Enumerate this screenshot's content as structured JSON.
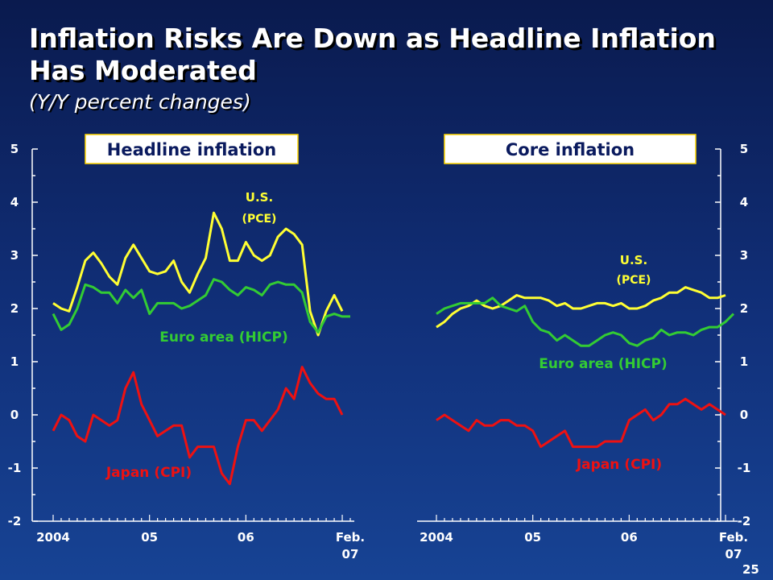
{
  "slide": {
    "title": "Inflation Risks Are Down as Headline Inflation Has Moderated",
    "subtitle": "(Y/Y percent changes)",
    "page_number": "25"
  },
  "colors": {
    "us": "#ffff33",
    "euro": "#33cc33",
    "japan": "#ee1111",
    "axis": "#ffffff",
    "panel_label_border": "#ffd700"
  },
  "chart_data": [
    {
      "type": "line",
      "title": "Headline inflation",
      "ylim": [
        -2,
        5
      ],
      "yticks": [
        "5",
        "4",
        "3",
        "2",
        "1",
        "0",
        "-1",
        "-2"
      ],
      "xlim": [
        2004.0,
        2007.125
      ],
      "xticks": [
        {
          "x": 2004,
          "label": "2004"
        },
        {
          "x": 2005,
          "label": "05"
        },
        {
          "x": 2006,
          "label": "06"
        },
        {
          "x": 2007.083,
          "label": "Feb.",
          "label2": "07"
        }
      ],
      "series": [
        {
          "name": "U.S.",
          "sub": "(PCE)",
          "key": "us",
          "x_start": 2004.0,
          "step": 0.08333,
          "values": [
            2.1,
            2.0,
            1.95,
            2.4,
            2.9,
            3.05,
            2.85,
            2.6,
            2.45,
            2.95,
            3.2,
            2.95,
            2.7,
            2.65,
            2.7,
            2.9,
            2.5,
            2.3,
            2.65,
            2.95,
            3.8,
            3.5,
            2.9,
            2.9,
            3.25,
            3.0,
            2.9,
            3.0,
            3.35,
            3.5,
            3.4,
            3.2,
            1.95,
            1.5,
            1.95,
            2.25,
            1.95
          ]
        },
        {
          "name": "Euro area (HICP)",
          "key": "euro",
          "x_start": 2004.0,
          "step": 0.08333,
          "values": [
            1.9,
            1.6,
            1.7,
            2.0,
            2.45,
            2.4,
            2.3,
            2.3,
            2.1,
            2.35,
            2.2,
            2.35,
            1.9,
            2.1,
            2.1,
            2.1,
            2.0,
            2.05,
            2.15,
            2.25,
            2.55,
            2.5,
            2.35,
            2.25,
            2.4,
            2.35,
            2.25,
            2.45,
            2.5,
            2.45,
            2.45,
            2.3,
            1.75,
            1.55,
            1.85,
            1.9,
            1.85,
            1.85
          ]
        },
        {
          "name": "Japan (CPI)",
          "key": "japan",
          "x_start": 2004.0,
          "step": 0.08333,
          "values": [
            -0.3,
            0.0,
            -0.1,
            -0.4,
            -0.5,
            0.0,
            -0.1,
            -0.2,
            -0.1,
            0.5,
            0.8,
            0.2,
            -0.1,
            -0.4,
            -0.3,
            -0.2,
            -0.2,
            -0.8,
            -0.6,
            -0.6,
            -0.6,
            -1.1,
            -1.3,
            -0.6,
            -0.1,
            -0.1,
            -0.3,
            -0.1,
            0.1,
            0.5,
            0.3,
            0.9,
            0.6,
            0.4,
            0.3,
            0.3,
            0.0
          ]
        }
      ]
    },
    {
      "type": "line",
      "title": "Core inflation",
      "ylim": [
        -2,
        5
      ],
      "yticks": [
        "5",
        "4",
        "3",
        "2",
        "1",
        "0",
        "-1",
        "-2"
      ],
      "xlim": [
        2004.0,
        2007.125
      ],
      "xticks": [
        {
          "x": 2004,
          "label": "2004"
        },
        {
          "x": 2005,
          "label": "05"
        },
        {
          "x": 2006,
          "label": "06"
        },
        {
          "x": 2007.083,
          "label": "Feb.",
          "label2": "07"
        }
      ],
      "series": [
        {
          "name": "U.S.",
          "sub": "(PCE)",
          "key": "us",
          "x_start": 2004.0,
          "step": 0.08333,
          "values": [
            1.65,
            1.75,
            1.9,
            2.0,
            2.05,
            2.15,
            2.05,
            2.0,
            2.05,
            2.15,
            2.25,
            2.2,
            2.2,
            2.2,
            2.15,
            2.05,
            2.1,
            2.0,
            2.0,
            2.05,
            2.1,
            2.1,
            2.05,
            2.1,
            2.0,
            2.0,
            2.05,
            2.15,
            2.2,
            2.3,
            2.3,
            2.4,
            2.35,
            2.3,
            2.2,
            2.2,
            2.25
          ]
        },
        {
          "name": "Euro area (HICP)",
          "key": "euro",
          "x_start": 2004.0,
          "step": 0.08333,
          "values": [
            1.9,
            2.0,
            2.05,
            2.1,
            2.1,
            2.1,
            2.1,
            2.2,
            2.05,
            2.0,
            1.95,
            2.05,
            1.75,
            1.6,
            1.55,
            1.4,
            1.5,
            1.4,
            1.3,
            1.3,
            1.4,
            1.5,
            1.55,
            1.5,
            1.35,
            1.3,
            1.4,
            1.45,
            1.6,
            1.5,
            1.55,
            1.55,
            1.5,
            1.6,
            1.65,
            1.65,
            1.75,
            1.9
          ]
        },
        {
          "name": "Japan (CPI)",
          "key": "japan",
          "x_start": 2004.0,
          "step": 0.08333,
          "values": [
            -0.1,
            0.0,
            -0.1,
            -0.2,
            -0.3,
            -0.1,
            -0.2,
            -0.2,
            -0.1,
            -0.1,
            -0.2,
            -0.2,
            -0.3,
            -0.6,
            -0.5,
            -0.4,
            -0.3,
            -0.6,
            -0.6,
            -0.6,
            -0.6,
            -0.5,
            -0.5,
            -0.5,
            -0.1,
            0.0,
            0.1,
            -0.1,
            0.0,
            0.2,
            0.2,
            0.3,
            0.2,
            0.1,
            0.2,
            0.1,
            0.0
          ]
        }
      ]
    }
  ]
}
